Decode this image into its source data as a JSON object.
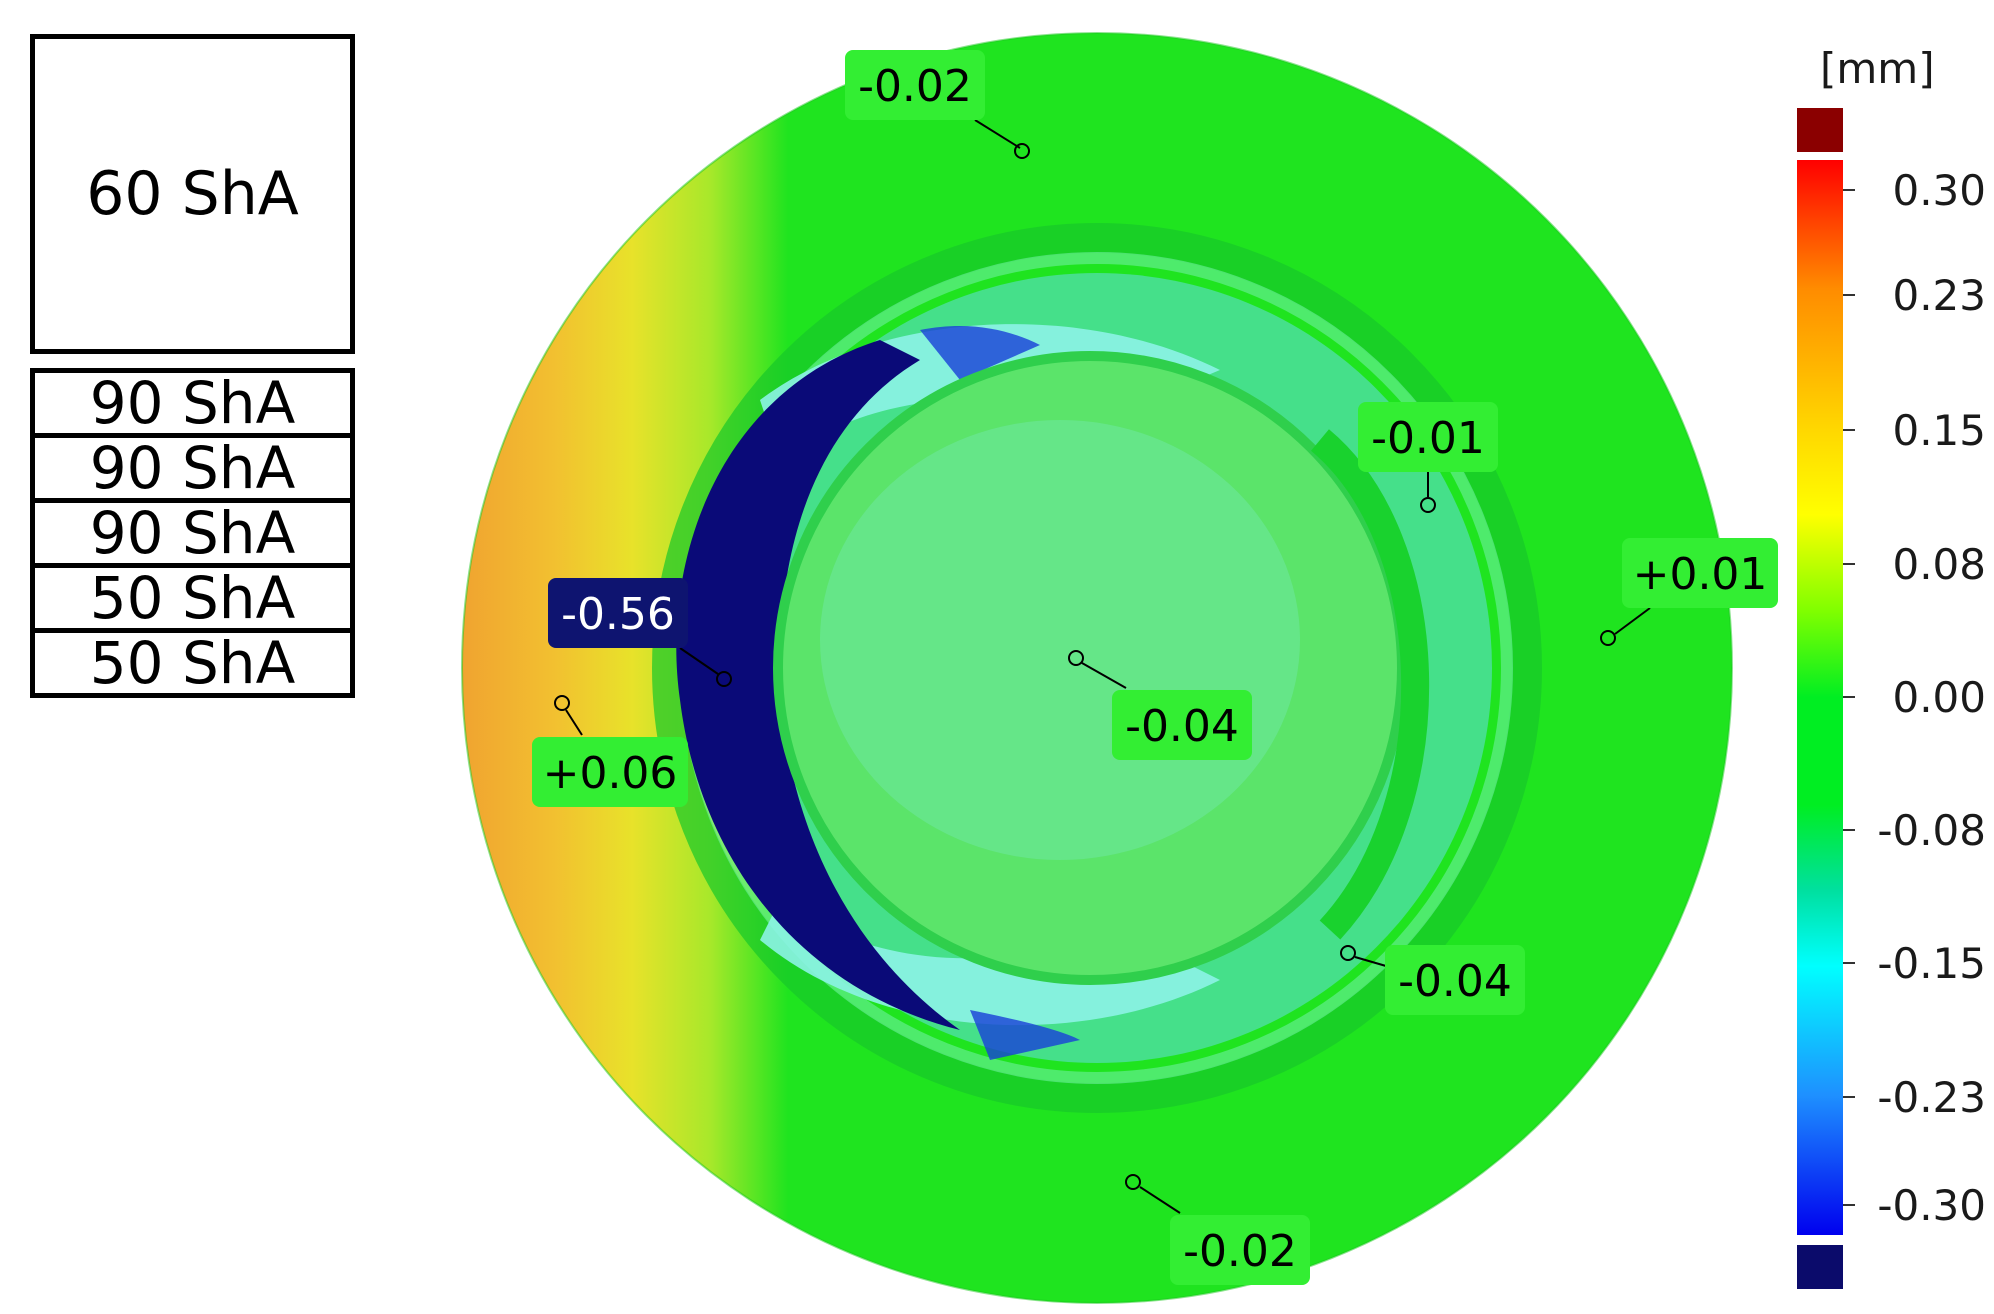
{
  "layers": {
    "top": "60 ShA",
    "stack": [
      "90 ShA",
      "90 ShA",
      "90 ShA",
      "50 ShA",
      "50 ShA"
    ]
  },
  "callouts": [
    {
      "id": "c1",
      "text": "-0.02",
      "style": "green"
    },
    {
      "id": "c2",
      "text": "-0.01",
      "style": "green"
    },
    {
      "id": "c3",
      "text": "+0.01",
      "style": "green"
    },
    {
      "id": "c4",
      "text": "-0.56",
      "style": "navy"
    },
    {
      "id": "c5",
      "text": "+0.06",
      "style": "green"
    },
    {
      "id": "c6",
      "text": "-0.04",
      "style": "green"
    },
    {
      "id": "c7",
      "text": "-0.04",
      "style": "green"
    },
    {
      "id": "c8",
      "text": "-0.02",
      "style": "green"
    }
  ],
  "legend": {
    "unit": "[mm]",
    "ticks": [
      "0.30",
      "0.23",
      "0.15",
      "0.08",
      "0.00",
      "-0.08",
      "-0.15",
      "-0.23",
      "-0.30"
    ],
    "over_color": "#8b0000",
    "under_color": "#0b0b6b",
    "gradient": [
      "#ff0000",
      "#ff8c00",
      "#ffd700",
      "#ffff00",
      "#7fff00",
      "#00ee22",
      "#00ee22",
      "#00e0a0",
      "#00ffff",
      "#1e90ff",
      "#0000ee"
    ]
  },
  "colors": {
    "base_green": "#1fe41f",
    "inner_green": "#55e255",
    "cyan_band": "#7ff0e0",
    "navy_crescent": "#0a0a78",
    "yellow_edge": "#e8e22a",
    "orange_edge": "#f0a030",
    "callout_green": "#33ee33",
    "callout_navy": "#0e1470"
  }
}
